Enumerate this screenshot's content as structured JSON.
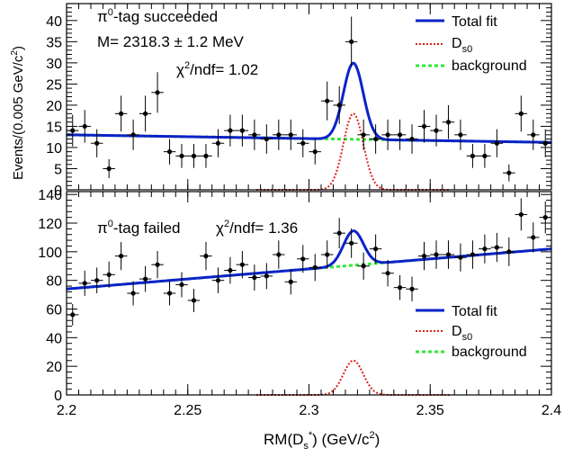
{
  "colors": {
    "total_fit": "#0b23c8",
    "signal": "#e0201b",
    "background": "#31e838",
    "data": "#000000"
  },
  "x_axis": {
    "label_main": "RM(D",
    "label_sub": "s",
    "label_sup": "*",
    "label_tail": ") (GeV/c",
    "label_tail_sup": "2",
    "label_close": ")",
    "ticks": [
      {
        "v": 2.2,
        "label": "2.2"
      },
      {
        "v": 2.25,
        "label": "2.25"
      },
      {
        "v": 2.3,
        "label": "2.3"
      },
      {
        "v": 2.35,
        "label": "2.35"
      },
      {
        "v": 2.4,
        "label": "2.4"
      }
    ],
    "xlim": [
      2.2,
      2.4
    ]
  },
  "y_axis": {
    "label_main": "Events/(0.005 GeV/c",
    "label_sup": "2",
    "label_close": ")"
  },
  "chart_data": [
    {
      "type": "scatter",
      "panel": "top",
      "xlim": [
        2.2,
        2.4
      ],
      "ylim": [
        0,
        44
      ],
      "ticks": [
        0,
        5,
        10,
        15,
        20,
        25,
        30,
        35,
        40
      ],
      "ticks_labels": [
        "0",
        "5",
        "10",
        "15",
        "20",
        "25",
        "30",
        "35",
        "40"
      ],
      "annotations": {
        "title_pre": "π",
        "title_sup": "0",
        "title_post": "-tag succeeded",
        "mass": "M= 2318.3 ± 1.2 MeV",
        "chi_pre": "χ",
        "chi_sup": "2",
        "chi_post": "/ndf= 1.02"
      },
      "legend": {
        "placement": "top-right",
        "entries": [
          {
            "key": "total_fit",
            "text": "Total fit"
          },
          {
            "key": "signal",
            "text": "D",
            "sub": "s0"
          },
          {
            "key": "background",
            "text": "background"
          }
        ]
      },
      "points": {
        "x": [
          2.2025,
          2.2075,
          2.2125,
          2.2175,
          2.2225,
          2.2275,
          2.2325,
          2.2375,
          2.2425,
          2.2475,
          2.2525,
          2.2575,
          2.2625,
          2.2675,
          2.2725,
          2.2775,
          2.2825,
          2.2875,
          2.2925,
          2.2975,
          2.3025,
          2.3075,
          2.3125,
          2.3175,
          2.3225,
          2.3275,
          2.3325,
          2.3375,
          2.3425,
          2.3475,
          2.3525,
          2.3575,
          2.3625,
          2.3675,
          2.3725,
          2.3775,
          2.3825,
          2.3875,
          2.3925,
          2.3975
        ],
        "y": [
          14,
          15,
          11,
          5,
          18,
          13,
          18,
          23,
          9,
          8,
          8,
          8,
          11,
          14,
          14,
          13,
          12,
          13,
          13,
          11,
          9,
          21,
          20,
          35,
          13,
          12,
          13,
          13,
          12,
          15,
          14,
          16,
          13,
          8,
          8,
          11,
          4,
          18,
          13,
          11
        ]
      },
      "background_line": {
        "x": [
          2.2,
          2.4
        ],
        "y": [
          13.0,
          11.2
        ]
      },
      "signal": {
        "mean": 2.3183,
        "sigma": 0.0041,
        "amplitude": 18.0
      }
    },
    {
      "type": "scatter",
      "panel": "bottom",
      "xlim": [
        2.2,
        2.4
      ],
      "ylim": [
        0,
        142
      ],
      "ticks": [
        0,
        20,
        40,
        60,
        80,
        100,
        120,
        140
      ],
      "ticks_labels": [
        "0",
        "20",
        "40",
        "60",
        "80",
        "100",
        "120",
        "140"
      ],
      "annotations": {
        "title_pre": "π",
        "title_sup": "0",
        "title_post": "-tag failed",
        "chi_pre": "χ",
        "chi_sup": "2",
        "chi_post": "/ndf= 1.36"
      },
      "legend": {
        "placement": "center-right",
        "entries": [
          {
            "key": "total_fit",
            "text": "Total fit"
          },
          {
            "key": "signal",
            "text": "D",
            "sub": "s0"
          },
          {
            "key": "background",
            "text": "background"
          }
        ]
      },
      "points": {
        "x": [
          2.2025,
          2.2075,
          2.2125,
          2.2175,
          2.2225,
          2.2275,
          2.2325,
          2.2375,
          2.2425,
          2.2475,
          2.2525,
          2.2575,
          2.2625,
          2.2675,
          2.2725,
          2.2775,
          2.2825,
          2.2875,
          2.2925,
          2.2975,
          2.3025,
          2.3075,
          2.3125,
          2.3175,
          2.3225,
          2.3275,
          2.3325,
          2.3375,
          2.3425,
          2.3475,
          2.3525,
          2.3575,
          2.3625,
          2.3675,
          2.3725,
          2.3775,
          2.3825,
          2.3875,
          2.3925,
          2.3975
        ],
        "y": [
          56,
          78,
          80,
          84,
          97,
          71,
          81,
          91,
          71,
          77,
          66,
          97,
          80,
          87,
          91,
          82,
          83,
          98,
          79,
          95,
          89,
          98,
          113,
          106,
          90,
          102,
          85,
          75,
          74,
          97,
          98,
          98,
          96,
          98,
          102,
          103,
          100,
          126,
          110,
          124
        ]
      },
      "background_line": {
        "x": [
          2.2,
          2.4
        ],
        "y": [
          74.0,
          102.0
        ]
      },
      "signal": {
        "mean": 2.3183,
        "sigma": 0.0041,
        "amplitude": 24.0
      }
    }
  ]
}
